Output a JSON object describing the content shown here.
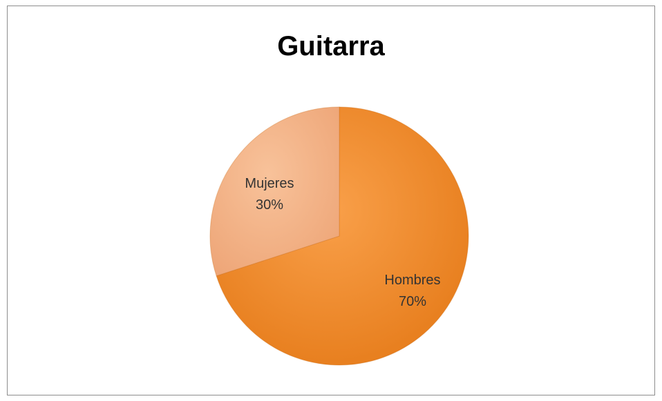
{
  "chart_data": {
    "type": "pie",
    "title": "Guitarra",
    "slices": [
      {
        "label": "Hombres",
        "percent_label": "70%",
        "value": 70,
        "color": "#f28a2c"
      },
      {
        "label": "Mujeres",
        "percent_label": "30%",
        "value": 30,
        "color": "#f4b283"
      }
    ]
  }
}
